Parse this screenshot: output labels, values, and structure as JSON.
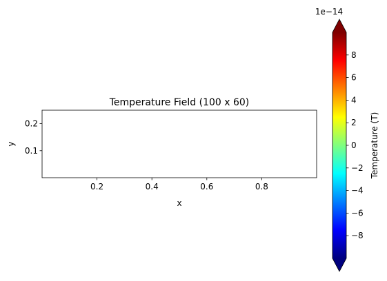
{
  "chart_data": [
    {
      "type": "heatmap",
      "title": "Temperature Field (100 x 60)",
      "xlabel": "x",
      "ylabel": "y",
      "xlim": [
        0.0,
        1.0
      ],
      "ylim": [
        0.0,
        0.25
      ],
      "x_ticks": [
        0.2,
        0.4,
        0.6,
        0.8
      ],
      "y_ticks": [
        0.1,
        0.2
      ],
      "x_tick_labels": [
        "0.2",
        "0.4",
        "0.6",
        "0.8"
      ],
      "y_tick_labels": [
        "0.1",
        "0.2"
      ],
      "grid": false,
      "values": []
    },
    {
      "type": "colorbar",
      "label": "Temperature (T)",
      "colormap": "jet",
      "offset_label": "1e−14",
      "range": [
        -10,
        10
      ],
      "extend": "both",
      "ticks": [
        -8,
        -6,
        -4,
        -2,
        0,
        2,
        4,
        6,
        8
      ],
      "tick_labels": [
        "−8",
        "−6",
        "−4",
        "−2",
        "0",
        "2",
        "4",
        "6",
        "8"
      ],
      "colors": [
        "#00007f",
        "#0000ff",
        "#007fff",
        "#00ffff",
        "#7fff7f",
        "#ffff00",
        "#ff7f00",
        "#ff0000",
        "#7f0000"
      ]
    }
  ]
}
